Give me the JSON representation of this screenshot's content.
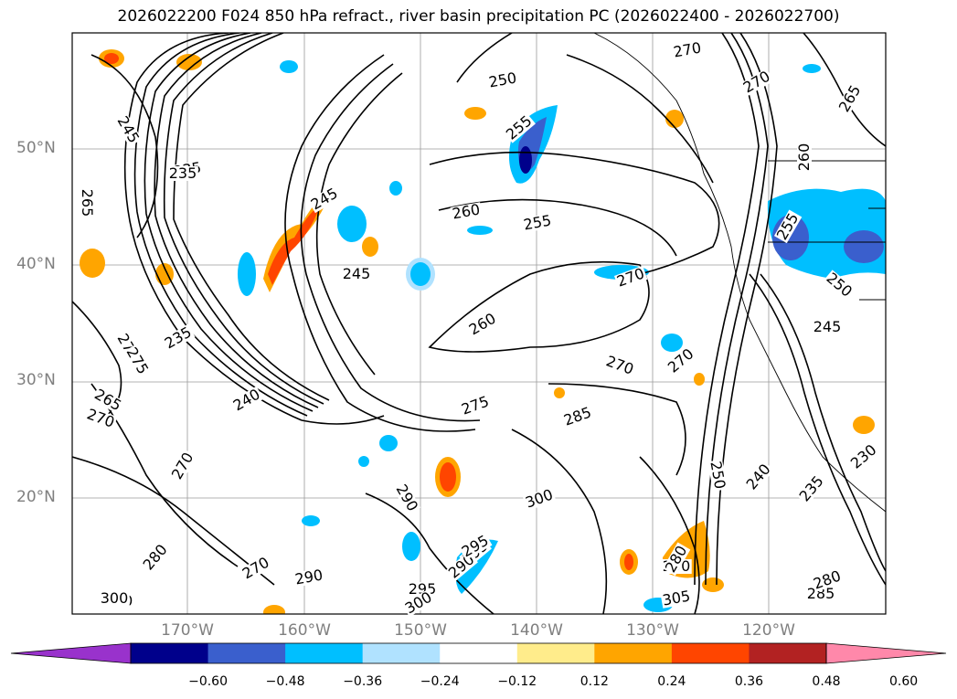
{
  "title": "2026022200 F024 850 hPa refract., river basin precipitation PC (2026022400 - 2026022700)",
  "map": {
    "latitude_labels": [
      "50°N",
      "40°N",
      "30°N",
      "20°N"
    ],
    "longitude_labels": [
      "170°W",
      "160°W",
      "150°W",
      "140°W",
      "130°W",
      "120°W"
    ],
    "contour_labels": [
      "235",
      "245",
      "250",
      "255",
      "260",
      "255",
      "260",
      "270",
      "275",
      "270",
      "240",
      "235",
      "270",
      "265",
      "275",
      "285",
      "290",
      "300",
      "295",
      "290",
      "295",
      "300",
      "280",
      "270",
      "250",
      "240",
      "235",
      "230",
      "245",
      "250",
      "255",
      "270",
      "265",
      "270",
      "260",
      "285",
      "280",
      "290",
      "300",
      "305",
      "270",
      "235",
      "245",
      "265",
      "275",
      "270",
      "280",
      "295",
      "290",
      "300",
      "245"
    ]
  },
  "colorbar": {
    "ticks": [
      "−0.60",
      "−0.48",
      "−0.36",
      "−0.24",
      "−0.12",
      "0.12",
      "0.24",
      "0.36",
      "0.48",
      "0.60"
    ],
    "colors": [
      "#9932cc",
      "#00008b",
      "#3a5fcd",
      "#00bfff",
      "#b0e2ff",
      "#ffffff",
      "#ffec8b",
      "#ffa500",
      "#ff4500",
      "#b22222",
      "#ff88aa"
    ]
  }
}
